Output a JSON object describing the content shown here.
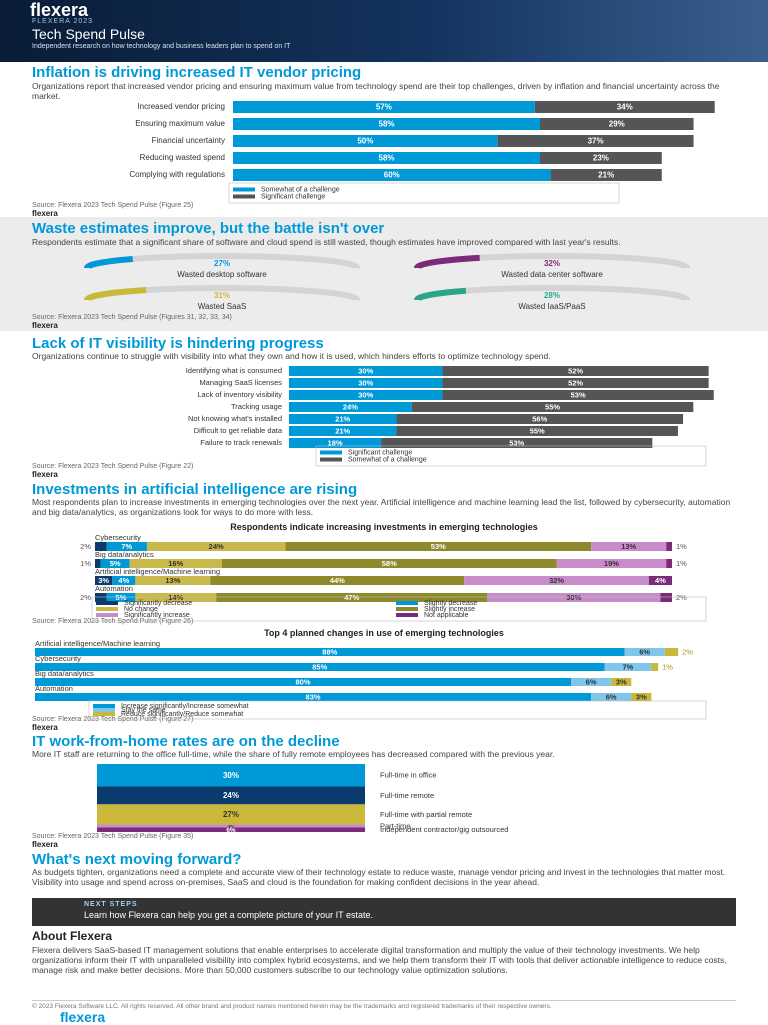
{
  "header": {
    "logo": "flexera",
    "kicker": "FLEXERA 2023",
    "title": "Tech Spend Pulse",
    "subtitle": "Independent research on how technology and business leaders plan to spend on IT"
  },
  "sections": [
    {
      "title": "Inflation is driving increased IT vendor pricing",
      "text": "Organizations report that increased vendor pricing and ensuring maximum value from technology spend are their top challenges, driven by inflation and financial uncertainty across the market.",
      "source": "Source: Flexera 2023 Tech Spend Pulse (Figure 25)"
    },
    {
      "title": "Waste estimates improve, but the battle isn't over",
      "text": "Respondents estimate that a significant share of software and cloud spend is still wasted, though estimates have improved compared with last year's results.",
      "source": "Source: Flexera 2023 Tech Spend Pulse (Figures 31, 32, 33, 34)"
    },
    {
      "title": "Lack of IT visibility is hindering progress",
      "text": "Organizations continue to struggle with visibility into what they own and how it is used, which hinders efforts to optimize technology spend.",
      "source": "Source: Flexera 2023 Tech Spend Pulse (Figure 22)"
    },
    {
      "title": "Investments in artificial intelligence are rising",
      "text": "Most respondents plan to increase investments in emerging technologies over the next year. Artificial intelligence and machine learning lead the list, followed by cybersecurity, automation and big data/analytics, as organizations look for ways to do more with less.",
      "source": "Source: Flexera 2023 Tech Spend Pulse (Figure 26)",
      "source_2": "Source: Flexera 2023 Tech Spend Pulse (Figure 27)"
    },
    {
      "title": "IT work-from-home rates are on the decline",
      "text": "More IT staff are returning to the office full-time, while the share of fully remote employees has decreased compared with the previous year.",
      "source": "Source: Flexera 2023 Tech Spend Pulse (Figure 35)"
    },
    {
      "title": "What's next moving forward?",
      "text": "As budgets tighten, organizations need a complete and accurate view of their technology estate to reduce waste, manage vendor pricing and invest in the technologies that matter most. Visibility into usage and spend across on-premises, SaaS and cloud is the foundation for making confident decisions in the year ahead."
    }
  ],
  "next_steps": {
    "label": "NEXT STEPS",
    "text": "Learn how Flexera can help you get a complete picture of your IT estate."
  },
  "about": {
    "title": "About Flexera",
    "text": "Flexera delivers SaaS-based IT management solutions that enable enterprises to accelerate digital transformation and multiply the value of their technology investments. We help organizations inform their IT with unparalleled visibility into complex hybrid ecosystems, and we help them transform their IT with tools that deliver actionable intelligence to reduce costs, manage risk and make better decisions. More than 50,000 customers subscribe to our technology value optimization solutions."
  },
  "footer": {
    "copyright": "© 2023 Flexera Software LLC. All rights reserved. All other brand and product names mentioned herein may be the trademarks and registered trademarks of their respective owners."
  },
  "chart_data": [
    {
      "type": "hbar-stacked",
      "categories": [
        "Increased vendor pricing",
        "Ensuring maximum value",
        "Financial uncertainty",
        "Reducing wasted spend",
        "Complying with regulations"
      ],
      "series": [
        {
          "name": "Somewhat of a challenge",
          "color": "#0099d8",
          "values": [
            57,
            58,
            50,
            58,
            60
          ],
          "value_labels": [
            "57%",
            "58%",
            "50%",
            "58%",
            "60%"
          ]
        },
        {
          "name": "Significant challenge",
          "color": "#555555",
          "values": [
            34,
            29,
            37,
            23,
            21
          ],
          "value_labels": [
            "34%",
            "29%",
            "37%",
            "23%",
            "21%"
          ]
        }
      ],
      "xlim": [
        0,
        92
      ]
    },
    {
      "type": "gauge",
      "categories": [
        "Wasted desktop software",
        "Wasted data center software",
        "Wasted SaaS",
        "Wasted IaaS/PaaS"
      ],
      "values": [
        27,
        32,
        31,
        28
      ],
      "value_labels": [
        "27%",
        "32%",
        "31%",
        "28%"
      ],
      "colors": [
        "#0099d8",
        "#7a2b7a",
        "#c9b83a",
        "#2aa58a"
      ],
      "ylim": [
        0,
        100
      ]
    },
    {
      "type": "hbar-stacked",
      "categories": [
        "Identifying what is consumed",
        "Managing SaaS licenses",
        "Lack of inventory visibility",
        "Tracking usage",
        "Not knowing what's installed",
        "Difficult to get reliable data",
        "Failure to track renewals"
      ],
      "series": [
        {
          "name": "Significant challenge",
          "color": "#0099d8",
          "values": [
            30,
            30,
            30,
            24,
            21,
            21,
            18
          ],
          "value_labels": [
            "30%",
            "30%",
            "30%",
            "24%",
            "21%",
            "21%",
            "18%"
          ]
        },
        {
          "name": "Somewhat of a challenge",
          "color": "#555555",
          "values": [
            52,
            52,
            53,
            55,
            56,
            55,
            53
          ],
          "value_labels": [
            "52%",
            "52%",
            "53%",
            "55%",
            "56%",
            "55%",
            "53%"
          ]
        }
      ],
      "xlim": [
        0,
        85
      ]
    },
    {
      "type": "hbar-stacked",
      "title": "Respondents indicate increasing investments in emerging technologies",
      "categories": [
        "Cybersecurity",
        "Big data/analytics",
        "Artificial intelligence/Machine learning",
        "Automation"
      ],
      "series": [
        {
          "name": "Significantly decrease",
          "color": "#0b3b6e",
          "values": [
            2,
            1,
            3,
            2
          ],
          "value_labels": [
            "2%",
            "1%",
            "3%",
            "2%"
          ]
        },
        {
          "name": "Slightly decrease",
          "color": "#0099d8",
          "values": [
            7,
            5,
            4,
            5
          ],
          "value_labels": [
            "7%",
            "5%",
            "4%",
            "5%"
          ]
        },
        {
          "name": "No change",
          "color": "#c9b84a",
          "values": [
            24,
            16,
            13,
            14
          ],
          "value_labels": [
            "24%",
            "16%",
            "13%",
            "14%"
          ]
        },
        {
          "name": "Slightly increase",
          "color": "#8e8a2c",
          "values": [
            53,
            58,
            44,
            47
          ],
          "value_labels": [
            "53%",
            "58%",
            "44%",
            "47%"
          ]
        },
        {
          "name": "Significantly increase",
          "color": "#c98ccb",
          "values": [
            13,
            19,
            32,
            30
          ],
          "value_labels": [
            "13%",
            "19%",
            "32%",
            "30%"
          ]
        },
        {
          "name": "Not applicable",
          "color": "#7a2b7a",
          "values": [
            1,
            1,
            4,
            2
          ],
          "value_labels": [
            "1%",
            "1%",
            "4%",
            "2%"
          ]
        }
      ],
      "xlim": [
        0,
        100
      ]
    },
    {
      "type": "hbar-stacked",
      "title": "Top 4 planned changes in use of emerging technologies",
      "categories": [
        "Artificial intelligence/Machine learning",
        "Cybersecurity",
        "Big data/analytics",
        "Automation"
      ],
      "series": [
        {
          "name": "Increase significantly/Increase somewhat",
          "color": "#0099d8",
          "values": [
            88,
            85,
            80,
            83
          ],
          "value_labels": [
            "88%",
            "85%",
            "80%",
            "83%"
          ]
        },
        {
          "name": "Stay the same",
          "color": "#7fc6ea",
          "values": [
            6,
            7,
            6,
            6
          ],
          "value_labels": [
            "6%",
            "7%",
            "6%",
            "6%"
          ]
        },
        {
          "name": "Reduce significantly/Reduce somewhat",
          "color": "#c9b83a",
          "values": [
            2,
            1,
            3,
            3
          ],
          "value_labels": [
            "2%",
            "1%",
            "3%",
            "3%"
          ]
        }
      ],
      "xlim": [
        0,
        100
      ]
    },
    {
      "type": "vstack",
      "categories": [
        "Full-time in office",
        "Full-time remote",
        "Full-time with partial remote",
        "Part-time",
        "Independent contractor/gig outsourced"
      ],
      "values": [
        30,
        24,
        27,
        4,
        6
      ],
      "value_labels": [
        "30%",
        "24%",
        "27%",
        "4%",
        "6%"
      ],
      "colors": [
        "#0099d8",
        "#0b3b6e",
        "#c9b83a",
        "#c98ccb",
        "#7a2b7a"
      ]
    }
  ]
}
